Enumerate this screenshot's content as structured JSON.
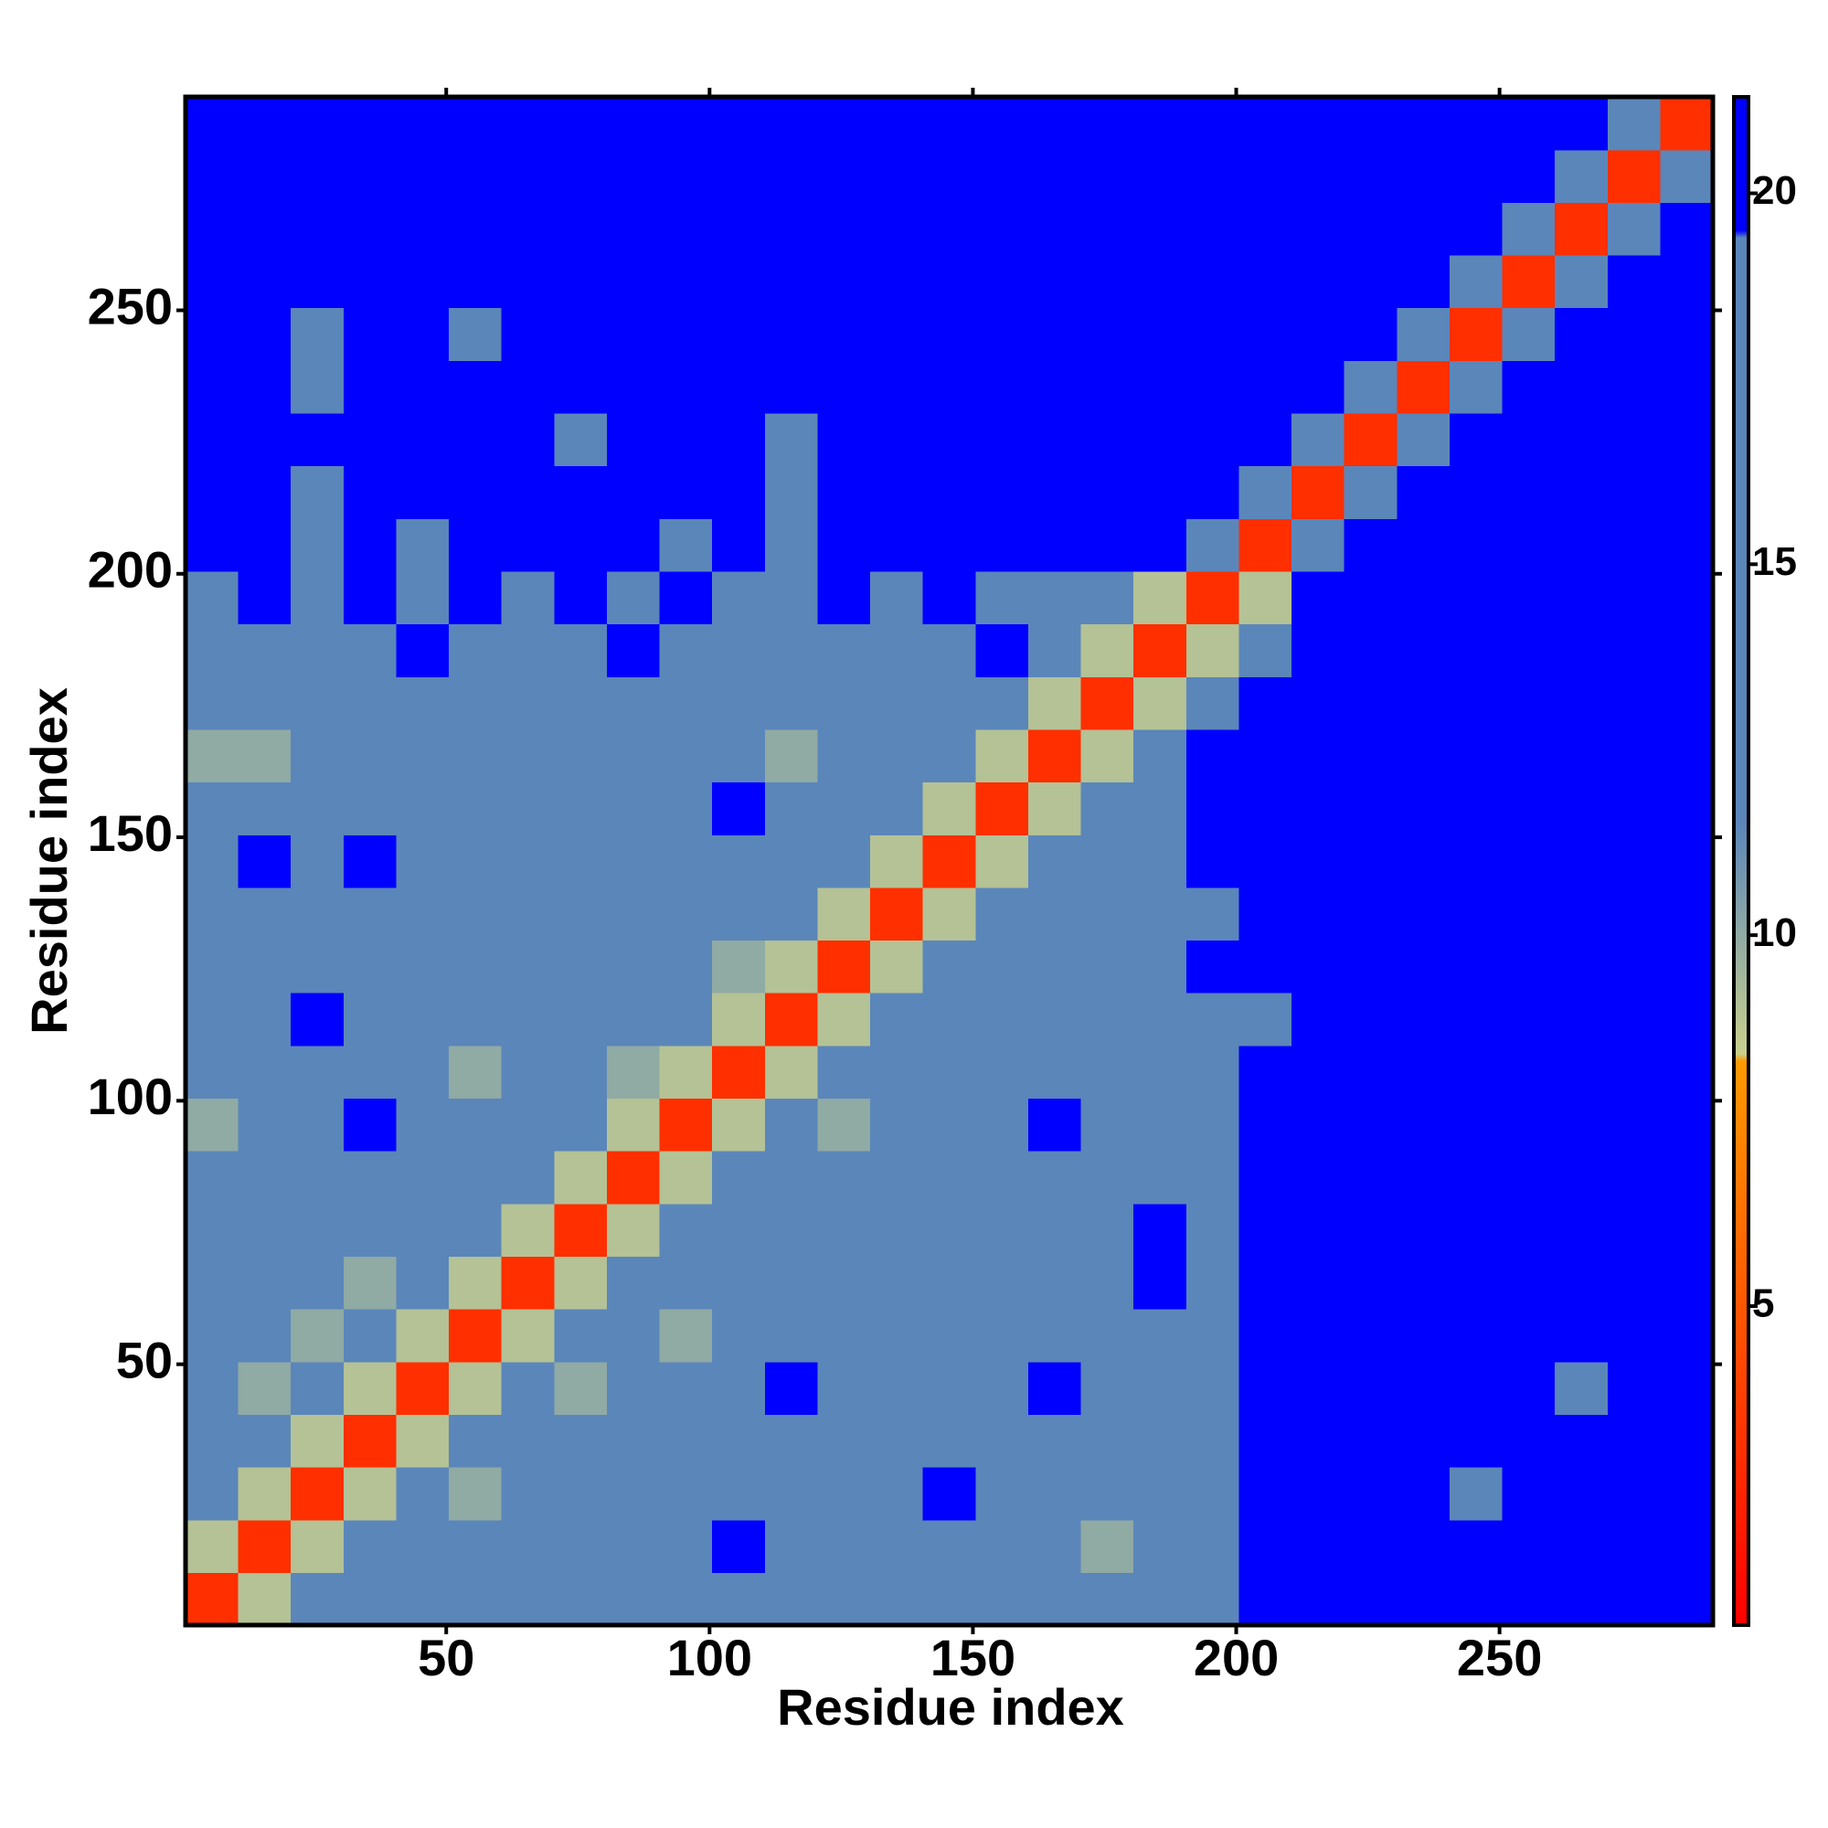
{
  "chart_data": {
    "type": "heatmap",
    "xlabel": "Residue index",
    "ylabel": "Residue index",
    "xbins": [
      0.5,
      10.5,
      20.5,
      30.5,
      40.5,
      50.5,
      60.5,
      70.5,
      80.5,
      90.5,
      100.5,
      110.5,
      120.5,
      130.5,
      140.5,
      150.5,
      160.5,
      170.5,
      180.5,
      190.5,
      200.5,
      210.5,
      220.5,
      230.5,
      240.5,
      250.5,
      260.5,
      270.5,
      280.5,
      290.5
    ],
    "ybins": [
      0.5,
      10.5,
      20.5,
      30.5,
      40.5,
      50.5,
      60.5,
      70.5,
      80.5,
      90.5,
      100.5,
      110.5,
      120.5,
      130.5,
      140.5,
      150.5,
      160.5,
      170.5,
      180.5,
      190.5,
      200.5,
      210.5,
      220.5,
      230.5,
      240.5,
      250.5,
      260.5,
      270.5,
      280.5,
      290.5
    ],
    "z": [
      [
        3,
        9,
        15,
        15,
        14,
        15,
        15,
        15,
        14,
        15,
        15,
        15,
        15,
        15,
        15,
        15,
        14,
        15,
        16,
        17,
        21,
        21,
        21,
        21,
        21,
        21,
        21,
        21,
        21
      ],
      [
        9,
        3,
        9,
        15,
        15,
        14,
        15,
        14,
        15,
        15,
        20,
        15,
        15,
        15,
        15,
        15,
        15,
        10,
        15,
        16,
        21,
        21,
        21,
        21,
        21,
        21,
        21,
        21,
        21
      ],
      [
        15,
        9,
        3,
        9,
        15,
        10,
        15,
        15,
        15,
        14,
        15,
        15,
        15,
        15,
        20,
        15,
        15,
        15,
        15,
        16,
        21,
        21,
        21,
        21,
        19,
        21,
        21,
        21,
        21
      ],
      [
        15,
        15,
        9,
        3,
        9,
        15,
        15,
        15,
        15,
        15,
        15,
        15,
        15,
        15,
        15,
        15,
        15,
        15,
        16,
        17,
        21,
        21,
        21,
        21,
        21,
        21,
        21,
        21,
        21
      ],
      [
        15,
        10,
        15,
        9,
        3,
        9,
        15,
        10,
        15,
        15,
        15,
        20,
        15,
        15,
        15,
        15,
        20,
        15,
        16,
        17,
        21,
        21,
        21,
        21,
        21,
        21,
        19,
        21,
        21
      ],
      [
        15,
        15,
        10,
        15,
        9,
        3,
        9,
        15,
        15,
        10,
        15,
        15,
        15,
        15,
        15,
        15,
        15,
        15,
        16,
        17,
        21,
        21,
        21,
        21,
        21,
        21,
        21,
        21,
        21
      ],
      [
        15,
        15,
        15,
        10,
        15,
        9,
        3,
        9,
        15,
        15,
        15,
        15,
        15,
        15,
        15,
        15,
        15,
        15,
        20,
        17,
        21,
        21,
        21,
        21,
        21,
        21,
        21,
        21,
        21
      ],
      [
        15,
        15,
        15,
        15,
        15,
        15,
        9,
        3,
        9,
        15,
        15,
        15,
        15,
        15,
        15,
        15,
        15,
        15,
        20,
        17,
        21,
        21,
        21,
        21,
        21,
        21,
        21,
        21,
        21
      ],
      [
        15,
        15,
        15,
        15,
        15,
        15,
        15,
        9,
        3,
        9,
        15,
        15,
        15,
        15,
        15,
        15,
        15,
        15,
        16,
        17,
        21,
        21,
        21,
        21,
        21,
        21,
        21,
        21,
        21
      ],
      [
        10,
        15,
        15,
        20,
        15,
        15,
        15,
        15,
        9,
        3,
        9,
        15,
        10,
        15,
        15,
        15,
        20,
        15,
        15,
        16,
        21,
        21,
        21,
        21,
        21,
        21,
        21,
        21,
        21
      ],
      [
        15,
        15,
        15,
        15,
        15,
        10,
        15,
        15,
        10,
        9,
        3,
        9,
        15,
        15,
        15,
        15,
        15,
        15,
        16,
        18,
        21,
        21,
        21,
        21,
        21,
        21,
        21,
        21,
        21
      ],
      [
        15,
        15,
        20,
        15,
        15,
        15,
        15,
        15,
        15,
        15,
        9,
        3,
        9,
        15,
        15,
        15,
        15,
        15,
        15,
        17,
        19,
        21,
        21,
        21,
        21,
        21,
        21,
        21,
        21
      ],
      [
        15,
        15,
        15,
        15,
        15,
        15,
        15,
        15,
        15,
        15,
        10,
        9,
        3,
        9,
        15,
        15,
        15,
        15,
        15,
        20,
        21,
        21,
        21,
        21,
        21,
        21,
        21,
        21,
        21
      ],
      [
        15,
        15,
        15,
        15,
        15,
        15,
        15,
        15,
        15,
        15,
        15,
        15,
        9,
        3,
        9,
        15,
        15,
        15,
        16,
        17,
        21,
        21,
        21,
        21,
        21,
        21,
        21,
        21,
        21
      ],
      [
        15,
        20,
        15,
        20,
        15,
        15,
        15,
        15,
        15,
        15,
        15,
        15,
        15,
        9,
        3,
        9,
        15,
        15,
        17,
        21,
        21,
        21,
        21,
        21,
        21,
        21,
        21,
        21,
        21
      ],
      [
        15,
        15,
        15,
        15,
        15,
        15,
        15,
        15,
        15,
        15,
        20,
        15,
        15,
        15,
        9,
        3,
        9,
        15,
        18,
        21,
        21,
        21,
        21,
        21,
        21,
        21,
        21,
        21,
        21
      ],
      [
        10,
        10,
        15,
        15,
        15,
        15,
        15,
        15,
        15,
        15,
        15,
        10,
        15,
        15,
        15,
        9,
        3,
        9,
        18,
        21,
        21,
        21,
        21,
        21,
        21,
        21,
        21,
        21,
        21
      ],
      [
        15,
        15,
        15,
        15,
        15,
        15,
        15,
        15,
        15,
        15,
        15,
        15,
        15,
        15,
        18,
        17,
        9,
        3,
        9,
        17,
        21,
        21,
        21,
        21,
        21,
        21,
        21,
        21,
        21
      ],
      [
        16,
        16,
        17,
        16,
        20,
        17,
        15,
        16,
        20,
        15,
        16,
        15,
        16,
        15,
        18,
        20,
        18,
        9,
        3,
        9,
        19,
        21,
        21,
        21,
        21,
        21,
        21,
        21,
        21
      ],
      [
        17,
        20,
        16,
        20,
        17,
        20,
        16,
        20,
        17,
        20,
        16,
        17,
        20,
        17,
        21,
        19,
        19,
        17,
        9,
        3,
        9,
        21,
        21,
        21,
        21,
        21,
        21,
        21,
        21
      ],
      [
        21,
        21,
        17,
        21,
        19,
        21,
        21,
        21,
        21,
        19,
        21,
        18,
        21,
        21,
        21,
        21,
        21,
        21,
        21,
        12,
        3,
        12,
        21,
        21,
        21,
        21,
        21,
        21,
        21
      ],
      [
        21,
        21,
        19,
        21,
        21,
        21,
        21,
        21,
        21,
        21,
        21,
        18,
        21,
        21,
        21,
        21,
        21,
        21,
        21,
        21,
        12,
        3,
        12,
        21,
        21,
        21,
        21,
        21,
        21
      ],
      [
        21,
        21,
        21,
        21,
        21,
        21,
        21,
        19,
        21,
        21,
        21,
        18,
        21,
        21,
        21,
        21,
        21,
        21,
        21,
        21,
        21,
        12,
        3,
        12,
        21,
        21,
        21,
        21,
        21
      ],
      [
        21,
        21,
        19,
        21,
        21,
        21,
        21,
        21,
        21,
        21,
        21,
        21,
        21,
        21,
        21,
        21,
        21,
        21,
        21,
        21,
        21,
        21,
        12,
        3,
        12,
        21,
        21,
        21,
        21
      ],
      [
        21,
        21,
        19,
        21,
        21,
        19,
        21,
        21,
        21,
        21,
        21,
        21,
        21,
        21,
        21,
        21,
        21,
        21,
        21,
        21,
        21,
        21,
        21,
        12,
        3,
        12,
        21,
        21,
        21
      ],
      [
        21,
        21,
        21,
        21,
        21,
        21,
        21,
        21,
        21,
        21,
        21,
        21,
        21,
        21,
        21,
        21,
        21,
        21,
        21,
        21,
        21,
        21,
        21,
        21,
        12,
        3,
        12,
        21,
        21
      ],
      [
        21,
        21,
        21,
        21,
        21,
        21,
        21,
        21,
        21,
        21,
        21,
        21,
        21,
        21,
        21,
        21,
        21,
        21,
        21,
        21,
        21,
        21,
        21,
        21,
        21,
        12,
        3,
        12,
        21
      ],
      [
        21,
        21,
        21,
        21,
        21,
        21,
        21,
        21,
        21,
        21,
        21,
        21,
        21,
        21,
        21,
        21,
        21,
        21,
        21,
        21,
        21,
        21,
        21,
        21,
        21,
        21,
        12,
        3,
        12
      ],
      [
        21,
        21,
        21,
        21,
        21,
        21,
        21,
        21,
        21,
        21,
        21,
        21,
        21,
        21,
        21,
        21,
        21,
        21,
        21,
        21,
        21,
        21,
        21,
        21,
        21,
        21,
        21,
        12,
        3
      ]
    ],
    "xlim": [
      0.5,
      290.5
    ],
    "ylim": [
      0.5,
      290.5
    ],
    "xticks": [
      50,
      100,
      150,
      200,
      250
    ],
    "yticks": [
      50,
      100,
      150,
      200,
      250
    ],
    "colorscale": [
      [
        0.7,
        "#ff0000"
      ],
      [
        8.3,
        "#ff9a00"
      ],
      [
        8.4,
        "#c9d08c"
      ],
      [
        11.5,
        "#5b86ba"
      ],
      [
        19.4,
        "#5b86ba"
      ],
      [
        19.5,
        "#0000ff"
      ],
      [
        21.3,
        "#0000ff"
      ]
    ],
    "zlim": [
      0.7,
      21.3
    ],
    "zticks": [
      5,
      10,
      15,
      20
    ]
  }
}
